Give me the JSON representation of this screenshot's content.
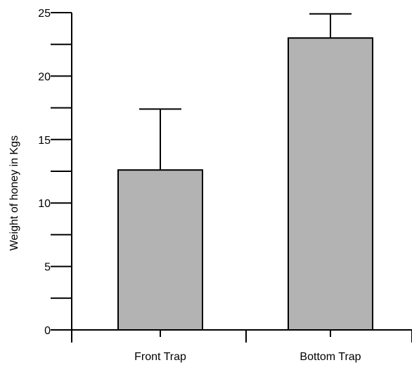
{
  "chart_data": {
    "type": "bar",
    "categories": [
      "Front Trap",
      "Bottom Trap"
    ],
    "values": [
      12.6,
      23.0
    ],
    "error_upper": [
      17.4,
      24.9
    ],
    "ylabel": "Weight of honey in Kgs",
    "xlabel": "",
    "ylim": [
      0,
      25
    ],
    "yticks_major": [
      0,
      5,
      10,
      15,
      20,
      25
    ],
    "yticks_minor": [
      2.5,
      7.5,
      12.5,
      17.5,
      22.5
    ],
    "ytick_labels": [
      "0",
      "5",
      "10",
      "15",
      "20",
      "25"
    ],
    "grid": false,
    "legend": "none",
    "colors": {
      "bar_fill": "#b3b3b3",
      "bar_stroke": "#000000",
      "axis": "#000000"
    }
  }
}
